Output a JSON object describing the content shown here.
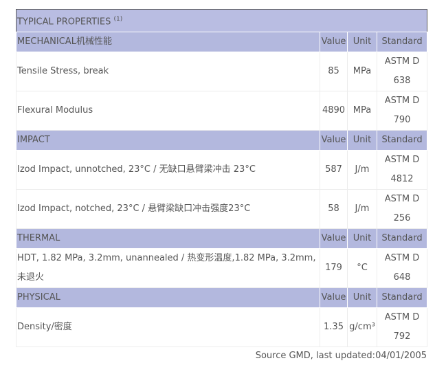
{
  "header": {
    "title": "TYPICAL PROPERTIES",
    "note": "(1)"
  },
  "sections": [
    {
      "name": "MECHANICAL机械性能",
      "columns": [
        "Value",
        "Unit",
        "Standard"
      ],
      "rows": [
        {
          "property": "Tensile Stress, break",
          "value": 85,
          "unit": "MPa",
          "standard": "ASTM D 638"
        },
        {
          "property": "Flexural Modulus",
          "value": 4890,
          "unit": "MPa",
          "standard": "ASTM D 790"
        }
      ]
    },
    {
      "name": "IMPACT",
      "columns": [
        "Value",
        "Unit",
        "Standard"
      ],
      "rows": [
        {
          "property": "Izod Impact, unnotched, 23°C / 无缺口悬臂梁冲击 23°C",
          "value": 587,
          "unit": "J/m",
          "standard": "ASTM D 4812"
        },
        {
          "property": "Izod Impact, notched, 23°C / 悬臂梁缺口冲击强度23°C",
          "value": 58,
          "unit": "J/m",
          "standard": "ASTM D 256"
        }
      ]
    },
    {
      "name": "THERMAL",
      "columns": [
        "Value",
        "Unit",
        "Standard"
      ],
      "rows": [
        {
          "property": "HDT, 1.82 MPa, 3.2mm, unannealed / 热变形温度,1.82 MPa, 3.2mm,未退火",
          "value": 179,
          "unit": "°C",
          "standard": "ASTM D 648"
        }
      ]
    },
    {
      "name": "PHYSICAL",
      "columns": [
        "Value",
        "Unit",
        "Standard"
      ],
      "rows": [
        {
          "property": "Density/密度",
          "value": 1.35,
          "unit": "g/cm³",
          "standard": "ASTM D 792"
        }
      ]
    }
  ],
  "footer": "Source GMD, last updated:04/01/2005"
}
